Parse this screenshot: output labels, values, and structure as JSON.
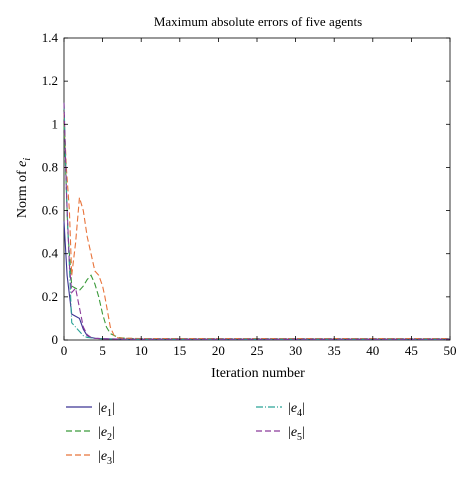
{
  "chart_data": {
    "type": "line",
    "title": "Maximum absolute errors of five agents",
    "xlabel": "Iteration number",
    "ylabel": "Norm of e_i",
    "ylabel_parts": {
      "prefix": "Norm of ",
      "var": "e",
      "sub": "i"
    },
    "xlim": [
      0,
      50
    ],
    "ylim": [
      0,
      1.4
    ],
    "xticks": [
      "0",
      "5",
      "10",
      "15",
      "20",
      "25",
      "30",
      "35",
      "40",
      "45",
      "50"
    ],
    "yticks": [
      "0",
      "0.2",
      "0.4",
      "0.6",
      "0.8",
      "1",
      "1.2",
      "1.4"
    ],
    "grid": false,
    "legend_position": "below",
    "series": [
      {
        "name": "|e1|",
        "label_var": "e",
        "label_sub": "1",
        "color": "#3c3494",
        "dash": "solid",
        "x": [
          0,
          0.4,
          1,
          2,
          2.5,
          3,
          3.5,
          4,
          5,
          6,
          8,
          10,
          50
        ],
        "y": [
          0.55,
          0.3,
          0.12,
          0.1,
          0.05,
          0.02,
          0.012,
          0.008,
          0.006,
          0.005,
          0.004,
          0.004,
          0.004
        ]
      },
      {
        "name": "|e2|",
        "label_var": "e",
        "label_sub": "2",
        "color": "#3a9a3a",
        "dash": "6,3",
        "x": [
          0,
          0.5,
          1,
          1.5,
          2,
          2.5,
          3,
          3.5,
          4,
          4.5,
          5,
          5.5,
          6,
          7,
          8,
          10,
          50
        ],
        "y": [
          1.0,
          0.5,
          0.25,
          0.24,
          0.23,
          0.25,
          0.28,
          0.3,
          0.26,
          0.2,
          0.12,
          0.06,
          0.03,
          0.012,
          0.008,
          0.006,
          0.006
        ]
      },
      {
        "name": "|e3|",
        "label_var": "e",
        "label_sub": "3",
        "color": "#e8733a",
        "dash": "6,3",
        "x": [
          0,
          0.3,
          0.7,
          1,
          1.5,
          2,
          2.5,
          3,
          3.5,
          4,
          4.5,
          5,
          5.3,
          5.7,
          6,
          6.5,
          7,
          8,
          10,
          50
        ],
        "y": [
          1.05,
          0.8,
          0.6,
          0.3,
          0.45,
          0.66,
          0.6,
          0.48,
          0.4,
          0.32,
          0.3,
          0.25,
          0.2,
          0.12,
          0.06,
          0.02,
          0.01,
          0.008,
          0.007,
          0.007
        ]
      },
      {
        "name": "|e4|",
        "label_var": "e",
        "label_sub": "4",
        "color": "#2aa397",
        "dash": "7,2,1,2",
        "x": [
          0,
          0.4,
          1,
          1.5,
          2,
          2.5,
          3,
          4,
          5,
          6,
          8,
          10,
          50
        ],
        "y": [
          1.1,
          0.6,
          0.08,
          0.06,
          0.04,
          0.02,
          0.012,
          0.008,
          0.006,
          0.005,
          0.004,
          0.004,
          0.004
        ]
      },
      {
        "name": "|e5|",
        "label_var": "e",
        "label_sub": "5",
        "color": "#8a3a9a",
        "dash": "6,3",
        "x": [
          0,
          0.3,
          0.7,
          1,
          1.5,
          2,
          2.5,
          3,
          3.5,
          4,
          5,
          6,
          8,
          10,
          50
        ],
        "y": [
          1.1,
          0.7,
          0.35,
          0.22,
          0.24,
          0.15,
          0.06,
          0.025,
          0.012,
          0.008,
          0.006,
          0.005,
          0.004,
          0.004,
          0.004
        ]
      }
    ]
  }
}
